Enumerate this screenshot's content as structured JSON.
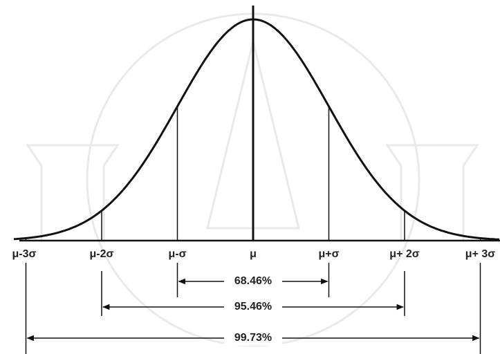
{
  "axis_labels": [
    "μ-3σ",
    "μ-2σ",
    "μ-σ",
    "μ",
    "μ+σ",
    "μ+ 2σ",
    "μ+ 3σ"
  ],
  "ranges": [
    {
      "label": "68.46%"
    },
    {
      "label": "95.46%"
    },
    {
      "label": "99.73%"
    }
  ]
}
